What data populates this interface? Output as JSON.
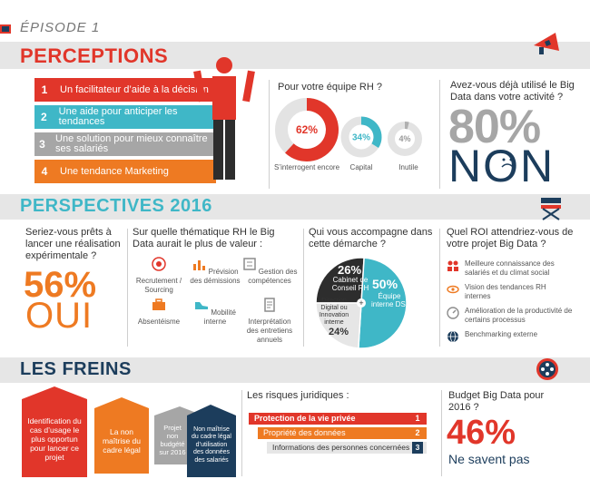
{
  "header": {
    "episode": "ÉPISODE 1"
  },
  "colors": {
    "red": "#e1362a",
    "orange": "#ee7a22",
    "teal": "#3fb7c7",
    "navy": "#1c3d5c",
    "grey": "#8c8c8c",
    "band": "#e6e6e6"
  },
  "perceptions": {
    "title": "PERCEPTIONS",
    "steps": [
      {
        "num": "1",
        "text": "Un facilitateur d’aide à la décision"
      },
      {
        "num": "2",
        "text": "Une aide pour anticiper les tendances"
      },
      {
        "num": "3",
        "text": "Une solution pour mieux connaître ses salariés"
      },
      {
        "num": "4",
        "text": "Une tendance Marketing"
      }
    ],
    "rh_question": "Pour votre équipe RH ?",
    "rh_circles": [
      {
        "value": "62%",
        "label": "S’interrogent encore",
        "fraction": 0.62
      },
      {
        "value": "34%",
        "label": "Capital",
        "fraction": 0.34
      },
      {
        "value": "4%",
        "label": "Inutile",
        "fraction": 0.04
      }
    ],
    "used_question": "Avez-vous déjà utilisé le Big Data dans votre activité ?",
    "used_value": "80%",
    "used_answer": "NON"
  },
  "perspectives": {
    "title": "PERSPECTIVES 2016",
    "ready_question": "Seriez-vous prêts à lancer une réalisation expérimentale ?",
    "ready_value": "56%",
    "ready_answer": "OUI",
    "theme_question": "Sur quelle thématique RH le Big Data aurait le plus de valeur :",
    "themes": [
      {
        "label": "Recrutement / Sourcing",
        "icon": "target-icon"
      },
      {
        "label": "Prévision des démissions",
        "icon": "chart-icon"
      },
      {
        "label": "Gestion des compétences",
        "icon": "skills-icon"
      },
      {
        "label": "Absentéisme",
        "icon": "briefcase-icon"
      },
      {
        "label": "Mobilité interne",
        "icon": "shoe-icon"
      },
      {
        "label": "Interprétation des entretiens annuels",
        "icon": "document-icon"
      }
    ],
    "support_question": "Qui vous accompagne dans cette démarche ?",
    "support_pie": [
      {
        "value": "26%",
        "label": "Cabinet de Conseil RH",
        "fraction": 0.26
      },
      {
        "value": "50%",
        "label": "Équipe interne DSI",
        "fraction": 0.5
      },
      {
        "value": "24%",
        "label": "Direction Digital ou Innovation interne",
        "fraction": 0.24
      }
    ],
    "roi_question": "Quel ROI attendriez-vous de votre projet Big Data ?",
    "roi_items": [
      {
        "label": "Meilleure connaissance des salariés et du climat social",
        "icon": "people-icon"
      },
      {
        "label": "Vision des tendances RH internes",
        "icon": "eye-icon"
      },
      {
        "label": "Amélioration de la productivité de certains processus",
        "icon": "gauge-icon"
      },
      {
        "label": "Benchmarking externe",
        "icon": "globe-icon"
      }
    ]
  },
  "freins": {
    "title": "LES FREINS",
    "houses": [
      {
        "text": "Identification du cas d’usage le plus opportun pour lancer ce projet"
      },
      {
        "text": "La non maîtrise du cadre légal"
      },
      {
        "text": "Projet non budgété sur 2016"
      },
      {
        "text": "Non maîtrise du cadre légal d’utilisation des données des salariés"
      }
    ],
    "legal_question": "Les risques juridiques :",
    "legal_risks": [
      {
        "num": "1",
        "text": "Protection de la vie privée"
      },
      {
        "num": "2",
        "text": "Propriété des données"
      },
      {
        "num": "3",
        "text": "Informations des personnes concernées"
      }
    ],
    "budget_question": "Budget Big Data pour 2016 ?",
    "budget_value": "46%",
    "budget_answer": "Ne savent pas"
  }
}
